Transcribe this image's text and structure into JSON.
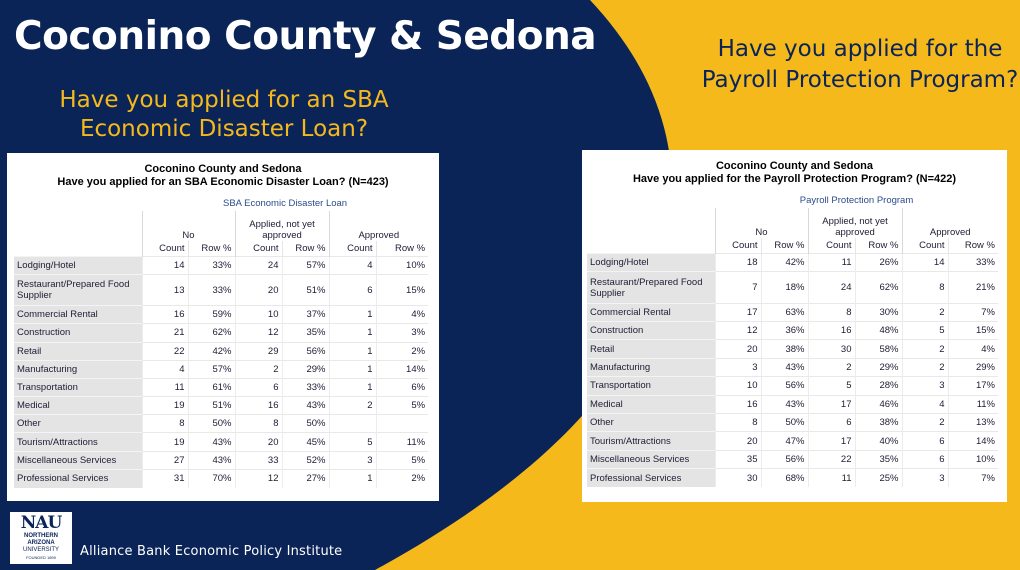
{
  "slide": {
    "title": "Coconino County & Sedona",
    "left_question": "Have you applied for an SBA Economic Disaster Loan?",
    "right_question": "Have you applied for the Payroll Protection Program?",
    "footer": "Alliance Bank Economic Policy Institute",
    "logo": {
      "mark": "NAU",
      "line1": "NORTHERN",
      "line2": "ARIZONA",
      "line3": "UNIVERSITY",
      "line4": "FOUNDED 1899"
    },
    "colors": {
      "navy": "#0b2457",
      "gold": "#f5b91c",
      "white": "#ffffff"
    }
  },
  "tables": {
    "left": {
      "title_line1": "Coconino County and Sedona",
      "title_line2": "Have you applied for an SBA Economic Disaster Loan? (N=423)",
      "variable": "SBA Economic Disaster Loan",
      "groups": [
        "No",
        "Applied, not yet approved",
        "Approved"
      ],
      "subheaders": [
        "Count",
        "Row %",
        "Count",
        "Row %",
        "Count",
        "Row %"
      ],
      "rows": [
        {
          "label": "Lodging/Hotel",
          "cells": [
            "14",
            "33%",
            "24",
            "57%",
            "4",
            "10%"
          ]
        },
        {
          "label": "Restaurant/Prepared Food Supplier",
          "cells": [
            "13",
            "33%",
            "20",
            "51%",
            "6",
            "15%"
          ]
        },
        {
          "label": "Commercial Rental",
          "cells": [
            "16",
            "59%",
            "10",
            "37%",
            "1",
            "4%"
          ]
        },
        {
          "label": "Construction",
          "cells": [
            "21",
            "62%",
            "12",
            "35%",
            "1",
            "3%"
          ]
        },
        {
          "label": "Retail",
          "cells": [
            "22",
            "42%",
            "29",
            "56%",
            "1",
            "2%"
          ]
        },
        {
          "label": "Manufacturing",
          "cells": [
            "4",
            "57%",
            "2",
            "29%",
            "1",
            "14%"
          ]
        },
        {
          "label": "Transportation",
          "cells": [
            "11",
            "61%",
            "6",
            "33%",
            "1",
            "6%"
          ]
        },
        {
          "label": "Medical",
          "cells": [
            "19",
            "51%",
            "16",
            "43%",
            "2",
            "5%"
          ]
        },
        {
          "label": "Other",
          "cells": [
            "8",
            "50%",
            "8",
            "50%",
            "",
            ""
          ]
        },
        {
          "label": "Tourism/Attractions",
          "cells": [
            "19",
            "43%",
            "20",
            "45%",
            "5",
            "11%"
          ]
        },
        {
          "label": "Miscellaneous Services",
          "cells": [
            "27",
            "43%",
            "33",
            "52%",
            "3",
            "5%"
          ]
        },
        {
          "label": "Professional Services",
          "cells": [
            "31",
            "70%",
            "12",
            "27%",
            "1",
            "2%"
          ]
        }
      ]
    },
    "right": {
      "title_line1": "Coconino County and Sedona",
      "title_line2": "Have you applied for the Payroll Protection Program? (N=422)",
      "variable": "Payroll Protection Program",
      "groups": [
        "No",
        "Applied, not yet approved",
        "Approved"
      ],
      "subheaders": [
        "Count",
        "Row %",
        "Count",
        "Row %",
        "Count",
        "Row %"
      ],
      "rows": [
        {
          "label": "Lodging/Hotel",
          "cells": [
            "18",
            "42%",
            "11",
            "26%",
            "14",
            "33%"
          ]
        },
        {
          "label": "Restaurant/Prepared Food Supplier",
          "cells": [
            "7",
            "18%",
            "24",
            "62%",
            "8",
            "21%"
          ]
        },
        {
          "label": "Commercial Rental",
          "cells": [
            "17",
            "63%",
            "8",
            "30%",
            "2",
            "7%"
          ]
        },
        {
          "label": "Construction",
          "cells": [
            "12",
            "36%",
            "16",
            "48%",
            "5",
            "15%"
          ]
        },
        {
          "label": "Retail",
          "cells": [
            "20",
            "38%",
            "30",
            "58%",
            "2",
            "4%"
          ]
        },
        {
          "label": "Manufacturing",
          "cells": [
            "3",
            "43%",
            "2",
            "29%",
            "2",
            "29%"
          ]
        },
        {
          "label": "Transportation",
          "cells": [
            "10",
            "56%",
            "5",
            "28%",
            "3",
            "17%"
          ]
        },
        {
          "label": "Medical",
          "cells": [
            "16",
            "43%",
            "17",
            "46%",
            "4",
            "11%"
          ]
        },
        {
          "label": "Other",
          "cells": [
            "8",
            "50%",
            "6",
            "38%",
            "2",
            "13%"
          ]
        },
        {
          "label": "Tourism/Attractions",
          "cells": [
            "20",
            "47%",
            "17",
            "40%",
            "6",
            "14%"
          ]
        },
        {
          "label": "Miscellaneous Services",
          "cells": [
            "35",
            "56%",
            "22",
            "35%",
            "6",
            "10%"
          ]
        },
        {
          "label": "Professional Services",
          "cells": [
            "30",
            "68%",
            "11",
            "25%",
            "3",
            "7%"
          ]
        }
      ]
    }
  }
}
